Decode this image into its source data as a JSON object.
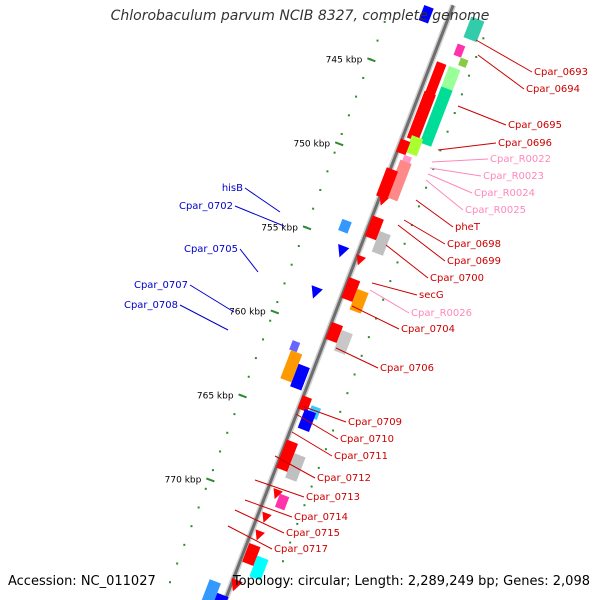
{
  "title": "Chlorobaculum parvum NCIB 8327, complete genome",
  "accession": "Accession: NC_011027",
  "summary": "Topology: circular; Length: 2,289,249 bp; Genes: 2,098",
  "colors": {
    "backbone": "#9a9a9a",
    "tick": "#2f8a2f",
    "cds_red": "#ff0000",
    "cds_blue": "#0000ff",
    "rna_pink": "#ff99cc",
    "label_red": "#cc0000",
    "label_blue": "#0000cc",
    "label_pink": "#ff88bb"
  },
  "scale_labels": [
    "745 kbp",
    "750 kbp",
    "755 kbp",
    "760 kbp",
    "765 kbp",
    "770 kbp"
  ],
  "right_labels": [
    {
      "text": "Cpar_0693",
      "color": "red"
    },
    {
      "text": "Cpar_0694",
      "color": "red"
    },
    {
      "text": "Cpar_0695",
      "color": "red"
    },
    {
      "text": "Cpar_0696",
      "color": "red"
    },
    {
      "text": "Cpar_R0022",
      "color": "pink"
    },
    {
      "text": "Cpar_R0023",
      "color": "pink"
    },
    {
      "text": "Cpar_R0024",
      "color": "pink"
    },
    {
      "text": "Cpar_R0025",
      "color": "pink"
    },
    {
      "text": "pheT",
      "color": "red"
    },
    {
      "text": "Cpar_0698",
      "color": "red"
    },
    {
      "text": "Cpar_0699",
      "color": "red"
    },
    {
      "text": "Cpar_0700",
      "color": "red"
    },
    {
      "text": "secG",
      "color": "red"
    },
    {
      "text": "Cpar_R0026",
      "color": "pink"
    },
    {
      "text": "Cpar_0704",
      "color": "red"
    },
    {
      "text": "Cpar_0706",
      "color": "red"
    },
    {
      "text": "Cpar_0709",
      "color": "red"
    },
    {
      "text": "Cpar_0710",
      "color": "red"
    },
    {
      "text": "Cpar_0711",
      "color": "red"
    },
    {
      "text": "Cpar_0712",
      "color": "red"
    },
    {
      "text": "Cpar_0713",
      "color": "red"
    },
    {
      "text": "Cpar_0714",
      "color": "red"
    },
    {
      "text": "Cpar_0715",
      "color": "red"
    },
    {
      "text": "Cpar_0717",
      "color": "red"
    }
  ],
  "left_labels": [
    {
      "text": "hisB",
      "color": "blue"
    },
    {
      "text": "Cpar_0702",
      "color": "blue"
    },
    {
      "text": "Cpar_0705",
      "color": "blue"
    },
    {
      "text": "Cpar_0707",
      "color": "blue"
    },
    {
      "text": "Cpar_0708",
      "color": "blue"
    }
  ]
}
